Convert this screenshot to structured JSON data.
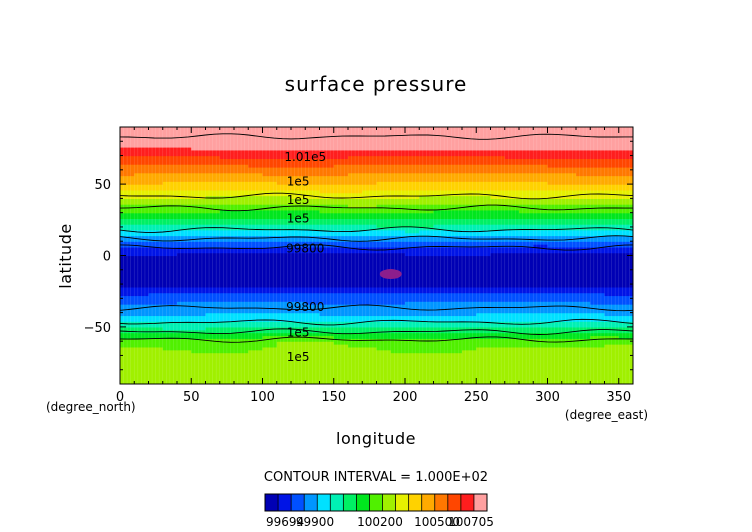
{
  "chart_data": {
    "type": "heatmap",
    "title": "surface pressure",
    "xlabel": "longitude",
    "ylabel": "latitude",
    "x_units": "(degree_east)",
    "y_units": "(degree_north)",
    "xlim": [
      0,
      360
    ],
    "ylim": [
      -90,
      90
    ],
    "x_ticks": [
      0,
      50,
      100,
      150,
      200,
      250,
      300,
      350
    ],
    "y_ticks": [
      -50,
      0,
      50
    ],
    "contour_interval_text": "CONTOUR INTERVAL = 1.000E+02",
    "colorbar": {
      "tick_labels": [
        "99694",
        "99900",
        "100200",
        "100500",
        "100705"
      ],
      "tick_values": [
        99694,
        99900,
        100200,
        100500,
        100705
      ],
      "range": [
        99694,
        100705
      ],
      "colors": [
        "#0000b4",
        "#0014e6",
        "#0050ff",
        "#0096ff",
        "#00e1ff",
        "#00f0b4",
        "#00f064",
        "#00e61e",
        "#50f000",
        "#a0f000",
        "#e6f000",
        "#ffd200",
        "#ffaa00",
        "#ff7800",
        "#ff4600",
        "#ff1e1e",
        "#ffa0a0"
      ]
    },
    "pressure_profile": {
      "lat": [
        -90,
        -80,
        -70,
        -60,
        -50,
        -40,
        -35,
        -30,
        -25,
        -20,
        -10,
        0,
        5,
        10,
        15,
        20,
        25,
        30,
        35,
        40,
        45,
        50,
        55,
        60,
        65,
        70,
        75,
        80,
        85,
        88,
        90
      ],
      "p": [
        100260,
        100250,
        100240,
        100220,
        100040,
        99920,
        99890,
        99850,
        99800,
        99720,
        99710,
        99740,
        99790,
        99870,
        99950,
        100030,
        100100,
        100160,
        100220,
        100280,
        100340,
        100400,
        100440,
        100500,
        100540,
        100600,
        100650,
        100690,
        100705,
        100705,
        100705
      ]
    },
    "low_pressure_cell": {
      "lon": 190,
      "lat": -13
    },
    "contour_labels": [
      {
        "text": "1.01e5",
        "lon": 130,
        "lat": 69
      },
      {
        "text": "1e5",
        "lon": 125,
        "lat": 52
      },
      {
        "text": "1e5",
        "lon": 125,
        "lat": 39
      },
      {
        "text": "1e5",
        "lon": 125,
        "lat": 26
      },
      {
        "text": "99800",
        "lon": 130,
        "lat": 5
      },
      {
        "text": "99800",
        "lon": 130,
        "lat": -36
      },
      {
        "text": "1e5",
        "lon": 125,
        "lat": -54
      },
      {
        "text": "1e5",
        "lon": 125,
        "lat": -71
      }
    ]
  }
}
